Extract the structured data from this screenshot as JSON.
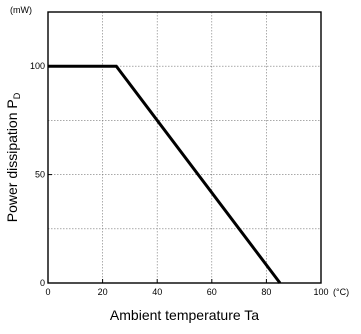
{
  "chart_data": {
    "type": "line",
    "xlabel": "Ambient temperature  Ta",
    "ylabel": "Power dissipation  P",
    "ylabel_subscript": "D",
    "x_unit": "(°C)",
    "y_unit": "(mW)",
    "xlim": [
      0,
      100
    ],
    "ylim": [
      0,
      125
    ],
    "x_ticks": [
      0,
      20,
      40,
      60,
      80,
      100
    ],
    "x_tick_labels": [
      "0",
      "20",
      "40",
      "60",
      "80",
      "100"
    ],
    "y_ticks": [
      0,
      50,
      100
    ],
    "y_tick_labels": [
      "0",
      "50",
      "100"
    ],
    "x_grid": [
      0,
      20,
      40,
      60,
      80,
      100
    ],
    "y_grid": [
      0,
      25,
      50,
      75,
      100,
      125
    ],
    "grid": true,
    "series": [
      {
        "x": [
          0,
          25,
          85
        ],
        "y": [
          100,
          100,
          0
        ],
        "color": "#000000"
      }
    ]
  }
}
